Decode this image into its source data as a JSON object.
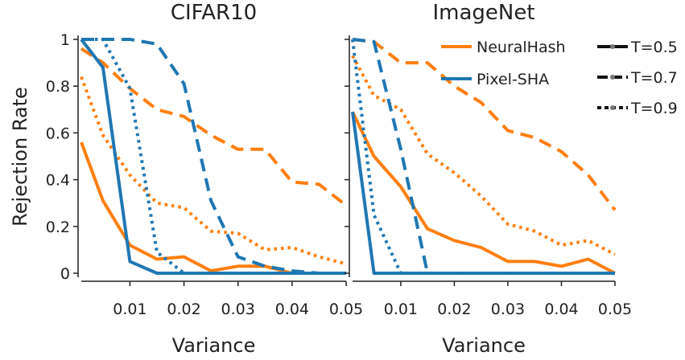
{
  "chart_data": {
    "type": "line",
    "ylabel": "Rejection Rate",
    "ylim": [
      0,
      1
    ],
    "xlim": [
      0.001,
      0.05
    ],
    "y_ticks": [
      "0",
      "0.2",
      "0.4",
      "0.6",
      "0.8",
      "1"
    ],
    "x_ticks": [
      "0.01",
      "0.02",
      "0.03",
      "0.04",
      "0.05"
    ],
    "legend": {
      "placement": "top-right of second panel",
      "methods": [
        {
          "name": "NeuralHash",
          "color": "#ff7f0e"
        },
        {
          "name": "Pixel-SHA",
          "color": "#1f77b4"
        }
      ],
      "thresholds": [
        {
          "name": "T=0.5",
          "dash": "solid"
        },
        {
          "name": "T=0.7",
          "dash": "dashed"
        },
        {
          "name": "T=0.9",
          "dash": "dotted"
        }
      ]
    },
    "panels": [
      {
        "title": "CIFAR10",
        "xlabel": "Variance",
        "x": [
          0.001,
          0.005,
          0.01,
          0.015,
          0.02,
          0.025,
          0.03,
          0.035,
          0.04,
          0.045,
          0.05
        ],
        "series": [
          {
            "method": "NeuralHash",
            "threshold": "T=0.5",
            "color": "#ff7f0e",
            "dash": "solid",
            "values": [
              0.56,
              0.31,
              0.12,
              0.06,
              0.07,
              0.01,
              0.03,
              0.03,
              0.0,
              0.0,
              0.0
            ]
          },
          {
            "method": "NeuralHash",
            "threshold": "T=0.7",
            "color": "#ff7f0e",
            "dash": "dashed",
            "values": [
              0.96,
              0.9,
              0.79,
              0.7,
              0.67,
              0.59,
              0.53,
              0.53,
              0.39,
              0.38,
              0.29
            ]
          },
          {
            "method": "NeuralHash",
            "threshold": "T=0.9",
            "color": "#ff7f0e",
            "dash": "dotted",
            "values": [
              0.84,
              0.59,
              0.42,
              0.3,
              0.28,
              0.18,
              0.17,
              0.1,
              0.11,
              0.07,
              0.04
            ]
          },
          {
            "method": "Pixel-SHA",
            "threshold": "T=0.5",
            "color": "#1f77b4",
            "dash": "solid",
            "values": [
              1.0,
              0.88,
              0.05,
              0.0,
              0.0,
              0.0,
              0.0,
              0.0,
              0.0,
              0.0,
              0.0
            ]
          },
          {
            "method": "Pixel-SHA",
            "threshold": "T=0.7",
            "color": "#1f77b4",
            "dash": "dashed",
            "values": [
              1.0,
              1.0,
              1.0,
              0.98,
              0.81,
              0.31,
              0.07,
              0.03,
              0.01,
              0.0,
              0.0
            ]
          },
          {
            "method": "Pixel-SHA",
            "threshold": "T=0.9",
            "color": "#1f77b4",
            "dash": "dotted",
            "values": [
              1.0,
              1.0,
              0.79,
              0.09,
              0.0,
              0.0,
              0.0,
              0.0,
              0.0,
              0.0,
              0.0
            ]
          }
        ]
      },
      {
        "title": "ImageNet",
        "xlabel": "Variance",
        "x": [
          0.001,
          0.005,
          0.01,
          0.015,
          0.02,
          0.025,
          0.03,
          0.035,
          0.04,
          0.045,
          0.05
        ],
        "series": [
          {
            "method": "NeuralHash",
            "threshold": "T=0.5",
            "color": "#ff7f0e",
            "dash": "solid",
            "values": [
              0.69,
              0.5,
              0.37,
              0.19,
              0.14,
              0.11,
              0.05,
              0.05,
              0.03,
              0.06,
              0.0
            ]
          },
          {
            "method": "NeuralHash",
            "threshold": "T=0.7",
            "color": "#ff7f0e",
            "dash": "dashed",
            "values": [
              1.0,
              0.99,
              0.9,
              0.9,
              0.8,
              0.73,
              0.61,
              0.58,
              0.52,
              0.42,
              0.27
            ]
          },
          {
            "method": "NeuralHash",
            "threshold": "T=0.9",
            "color": "#ff7f0e",
            "dash": "dotted",
            "values": [
              0.93,
              0.76,
              0.7,
              0.51,
              0.43,
              0.33,
              0.21,
              0.18,
              0.12,
              0.14,
              0.08
            ]
          },
          {
            "method": "Pixel-SHA",
            "threshold": "T=0.5",
            "color": "#1f77b4",
            "dash": "solid",
            "values": [
              0.69,
              0.0,
              0.0,
              0.0,
              0.0,
              0.0,
              0.0,
              0.0,
              0.0,
              0.0,
              0.0
            ]
          },
          {
            "method": "Pixel-SHA",
            "threshold": "T=0.7",
            "color": "#1f77b4",
            "dash": "dashed",
            "values": [
              1.0,
              0.99,
              0.53,
              0.0,
              0.0,
              0.0,
              0.0,
              0.0,
              0.0,
              0.0,
              0.0
            ]
          },
          {
            "method": "Pixel-SHA",
            "threshold": "T=0.9",
            "color": "#1f77b4",
            "dash": "dotted",
            "values": [
              1.0,
              0.25,
              0.0,
              0.0,
              0.0,
              0.0,
              0.0,
              0.0,
              0.0,
              0.0,
              0.0
            ]
          }
        ]
      }
    ]
  }
}
